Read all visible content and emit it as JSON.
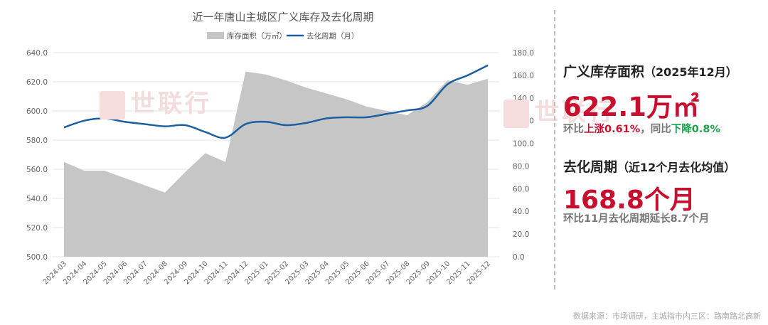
{
  "chart_data": {
    "type": "area+line",
    "title": "近一年唐山主城区广义库存及去化周期",
    "legend": [
      "库存面积（万㎡）",
      "去化周期（月）"
    ],
    "legend_position": "top",
    "categories": [
      "2024-03",
      "2024-04",
      "2024-05",
      "2024-06",
      "2024-07",
      "2024-08",
      "2024-09",
      "2024-10",
      "2024-11",
      "2024-12",
      "2025-01",
      "2025-02",
      "2025-03",
      "2025-04",
      "2025-05",
      "2025-06",
      "2025-07",
      "2025-08",
      "2025-09",
      "2025-10",
      "2025-11",
      "2025-12"
    ],
    "y_left": {
      "label": "库存面积（万㎡）",
      "ylim": [
        500,
        640
      ],
      "ticks": [
        "640.0",
        "620.0",
        "600.0",
        "580.0",
        "560.0",
        "540.0",
        "520.0",
        "500.0"
      ]
    },
    "y_right": {
      "label": "去化周期（月）",
      "ylim": [
        0,
        180
      ],
      "ticks": [
        "180.0",
        "160.0",
        "140.0",
        "120.0",
        "100.0",
        "80.0",
        "60.0",
        "40.0",
        "20.0",
        "0.0"
      ]
    },
    "series": [
      {
        "name": "库存面积（万㎡）",
        "type": "area",
        "axis": "left",
        "color": "#c6c6c6",
        "values": [
          565,
          559,
          559,
          554,
          549,
          544,
          558,
          571,
          565,
          627,
          625,
          621,
          616,
          612,
          608,
          603,
          600,
          597,
          606,
          621,
          618,
          622.1
        ]
      },
      {
        "name": "去化周期（月）",
        "type": "line",
        "axis": "right",
        "color": "#1c5f9f",
        "values": [
          114,
          120,
          122,
          119,
          117,
          115,
          116,
          110,
          105,
          117,
          119,
          116,
          118,
          122,
          123,
          123,
          126,
          129,
          133,
          152,
          160,
          168.8
        ]
      }
    ],
    "grid": true
  },
  "watermark": "世联行",
  "panel": {
    "inventory_title": "广义库存面积",
    "inventory_period": "（2025年12月）",
    "inventory_value": "622.1万㎡",
    "inventory_mom_prefix": "环比",
    "inventory_mom_change": "上涨0.61%",
    "inventory_yoy_prefix": "，同比",
    "inventory_yoy_change": "下降0.8%",
    "cycle_title": "去化周期",
    "cycle_period": "（近12个月去化均值）",
    "cycle_value": "168.8个月",
    "cycle_note": "环比11月去化周期延长8.7个月"
  },
  "source": "数据来源：市场调研，主城指市内三区：路南路北高新"
}
